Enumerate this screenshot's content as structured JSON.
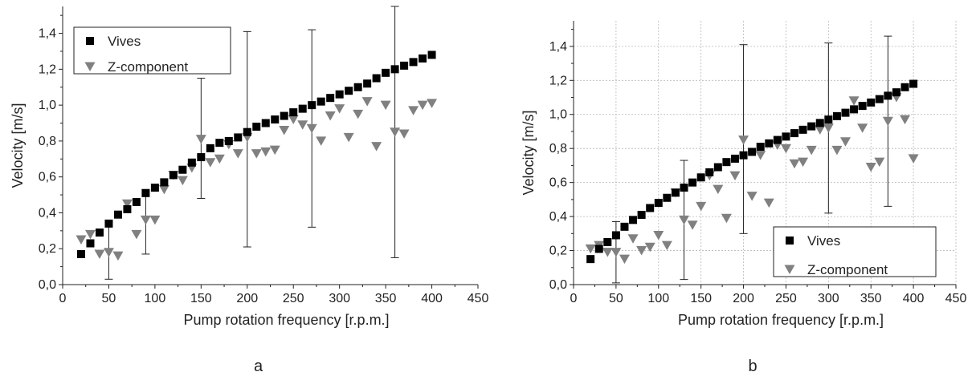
{
  "chart_data": [
    {
      "type": "scatter",
      "panel_label": "a",
      "xlabel": "Pump rotation frequency [r.p.m.]",
      "ylabel": "Velocity [m/s]",
      "xlim": [
        0,
        450
      ],
      "ylim": [
        0,
        1.55
      ],
      "xticks": [
        0,
        50,
        100,
        150,
        200,
        250,
        300,
        350,
        400,
        450
      ],
      "yticks": [
        0.0,
        0.2,
        0.4,
        0.6,
        0.8,
        1.0,
        1.2,
        1.4
      ],
      "ytick_labels": [
        "0,0",
        "0,2",
        "0,4",
        "0,6",
        "0,8",
        "1,0",
        "1,2",
        "1,4"
      ],
      "grid": false,
      "legend_position": "top-left",
      "series": [
        {
          "name": "Vives",
          "marker": "square",
          "color": "#000000",
          "x": [
            20,
            30,
            40,
            50,
            60,
            70,
            80,
            90,
            100,
            110,
            120,
            130,
            140,
            150,
            160,
            170,
            180,
            190,
            200,
            210,
            220,
            230,
            240,
            250,
            260,
            270,
            280,
            290,
            300,
            310,
            320,
            330,
            340,
            350,
            360,
            370,
            380,
            390,
            400
          ],
          "y": [
            0.17,
            0.23,
            0.29,
            0.34,
            0.39,
            0.42,
            0.46,
            0.51,
            0.54,
            0.57,
            0.61,
            0.64,
            0.68,
            0.71,
            0.76,
            0.79,
            0.8,
            0.82,
            0.85,
            0.88,
            0.9,
            0.92,
            0.94,
            0.96,
            0.98,
            1.0,
            1.02,
            1.04,
            1.06,
            1.08,
            1.1,
            1.12,
            1.15,
            1.18,
            1.2,
            1.22,
            1.24,
            1.26,
            1.28
          ]
        },
        {
          "name": "Z-component",
          "marker": "triangle-down",
          "color": "#808080",
          "x": [
            20,
            30,
            40,
            50,
            60,
            70,
            80,
            90,
            100,
            110,
            120,
            130,
            140,
            150,
            160,
            170,
            180,
            190,
            200,
            210,
            220,
            230,
            240,
            250,
            260,
            270,
            280,
            290,
            300,
            310,
            320,
            330,
            340,
            350,
            360,
            370,
            380,
            390,
            400
          ],
          "y": [
            0.25,
            0.28,
            0.17,
            0.18,
            0.16,
            0.45,
            0.28,
            0.36,
            0.36,
            0.53,
            0.61,
            0.58,
            0.65,
            0.81,
            0.68,
            0.7,
            0.78,
            0.73,
            0.82,
            0.73,
            0.74,
            0.75,
            0.86,
            0.92,
            0.89,
            0.87,
            0.8,
            0.94,
            0.98,
            0.82,
            0.95,
            1.02,
            0.77,
            1.0,
            0.85,
            0.84,
            0.97,
            1.0,
            1.01
          ]
        }
      ],
      "error_bars": [
        {
          "x": 50,
          "low": 0.03,
          "high": 0.35
        },
        {
          "x": 90,
          "low": 0.17,
          "high": 0.53
        },
        {
          "x": 150,
          "low": 0.48,
          "high": 1.15
        },
        {
          "x": 200,
          "low": 0.21,
          "high": 1.41
        },
        {
          "x": 270,
          "low": 0.32,
          "high": 1.42
        },
        {
          "x": 360,
          "low": 0.15,
          "high": 1.55
        }
      ]
    },
    {
      "type": "scatter",
      "panel_label": "b",
      "xlabel": "Pump rotation frequency [r.p.m.]",
      "ylabel": "Velocity [m/s]",
      "xlim": [
        0,
        450
      ],
      "ylim": [
        0,
        1.55
      ],
      "xticks": [
        0,
        50,
        100,
        150,
        200,
        250,
        300,
        350,
        400,
        450
      ],
      "yticks": [
        0.0,
        0.2,
        0.4,
        0.6,
        0.8,
        1.0,
        1.2,
        1.4
      ],
      "ytick_labels": [
        "0,0",
        "0,2",
        "0,4",
        "0,6",
        "0,8",
        "1,0",
        "1,2",
        "1,4"
      ],
      "grid": true,
      "legend_position": "bottom-right",
      "series": [
        {
          "name": "Vives",
          "marker": "square",
          "color": "#000000",
          "x": [
            20,
            30,
            40,
            50,
            60,
            70,
            80,
            90,
            100,
            110,
            120,
            130,
            140,
            150,
            160,
            170,
            180,
            190,
            200,
            210,
            220,
            230,
            240,
            250,
            260,
            270,
            280,
            290,
            300,
            310,
            320,
            330,
            340,
            350,
            360,
            370,
            380,
            390,
            400
          ],
          "y": [
            0.15,
            0.21,
            0.25,
            0.29,
            0.34,
            0.38,
            0.41,
            0.45,
            0.48,
            0.51,
            0.54,
            0.57,
            0.6,
            0.63,
            0.66,
            0.69,
            0.72,
            0.74,
            0.76,
            0.78,
            0.81,
            0.83,
            0.85,
            0.87,
            0.89,
            0.91,
            0.93,
            0.95,
            0.97,
            0.99,
            1.01,
            1.03,
            1.05,
            1.07,
            1.09,
            1.11,
            1.13,
            1.16,
            1.18
          ]
        },
        {
          "name": "Z-component",
          "marker": "triangle-down",
          "color": "#808080",
          "x": [
            20,
            30,
            40,
            50,
            60,
            70,
            80,
            90,
            100,
            110,
            120,
            130,
            140,
            150,
            160,
            170,
            180,
            190,
            200,
            210,
            220,
            230,
            240,
            250,
            260,
            270,
            280,
            290,
            300,
            310,
            320,
            330,
            340,
            350,
            360,
            370,
            380,
            390,
            400
          ],
          "y": [
            0.21,
            0.23,
            0.19,
            0.19,
            0.15,
            0.27,
            0.2,
            0.22,
            0.29,
            0.23,
            0.54,
            0.38,
            0.35,
            0.46,
            0.64,
            0.56,
            0.39,
            0.64,
            0.85,
            0.52,
            0.76,
            0.48,
            0.82,
            0.8,
            0.71,
            0.72,
            0.79,
            0.91,
            0.92,
            0.79,
            0.84,
            1.08,
            0.92,
            0.69,
            0.72,
            0.96,
            1.1,
            0.97,
            0.74
          ]
        }
      ],
      "error_bars": [
        {
          "x": 50,
          "low": 0.01,
          "high": 0.37
        },
        {
          "x": 130,
          "low": 0.03,
          "high": 0.73
        },
        {
          "x": 200,
          "low": 0.3,
          "high": 1.41
        },
        {
          "x": 300,
          "low": 0.42,
          "high": 1.42
        },
        {
          "x": 370,
          "low": 0.46,
          "high": 1.46
        }
      ]
    }
  ]
}
